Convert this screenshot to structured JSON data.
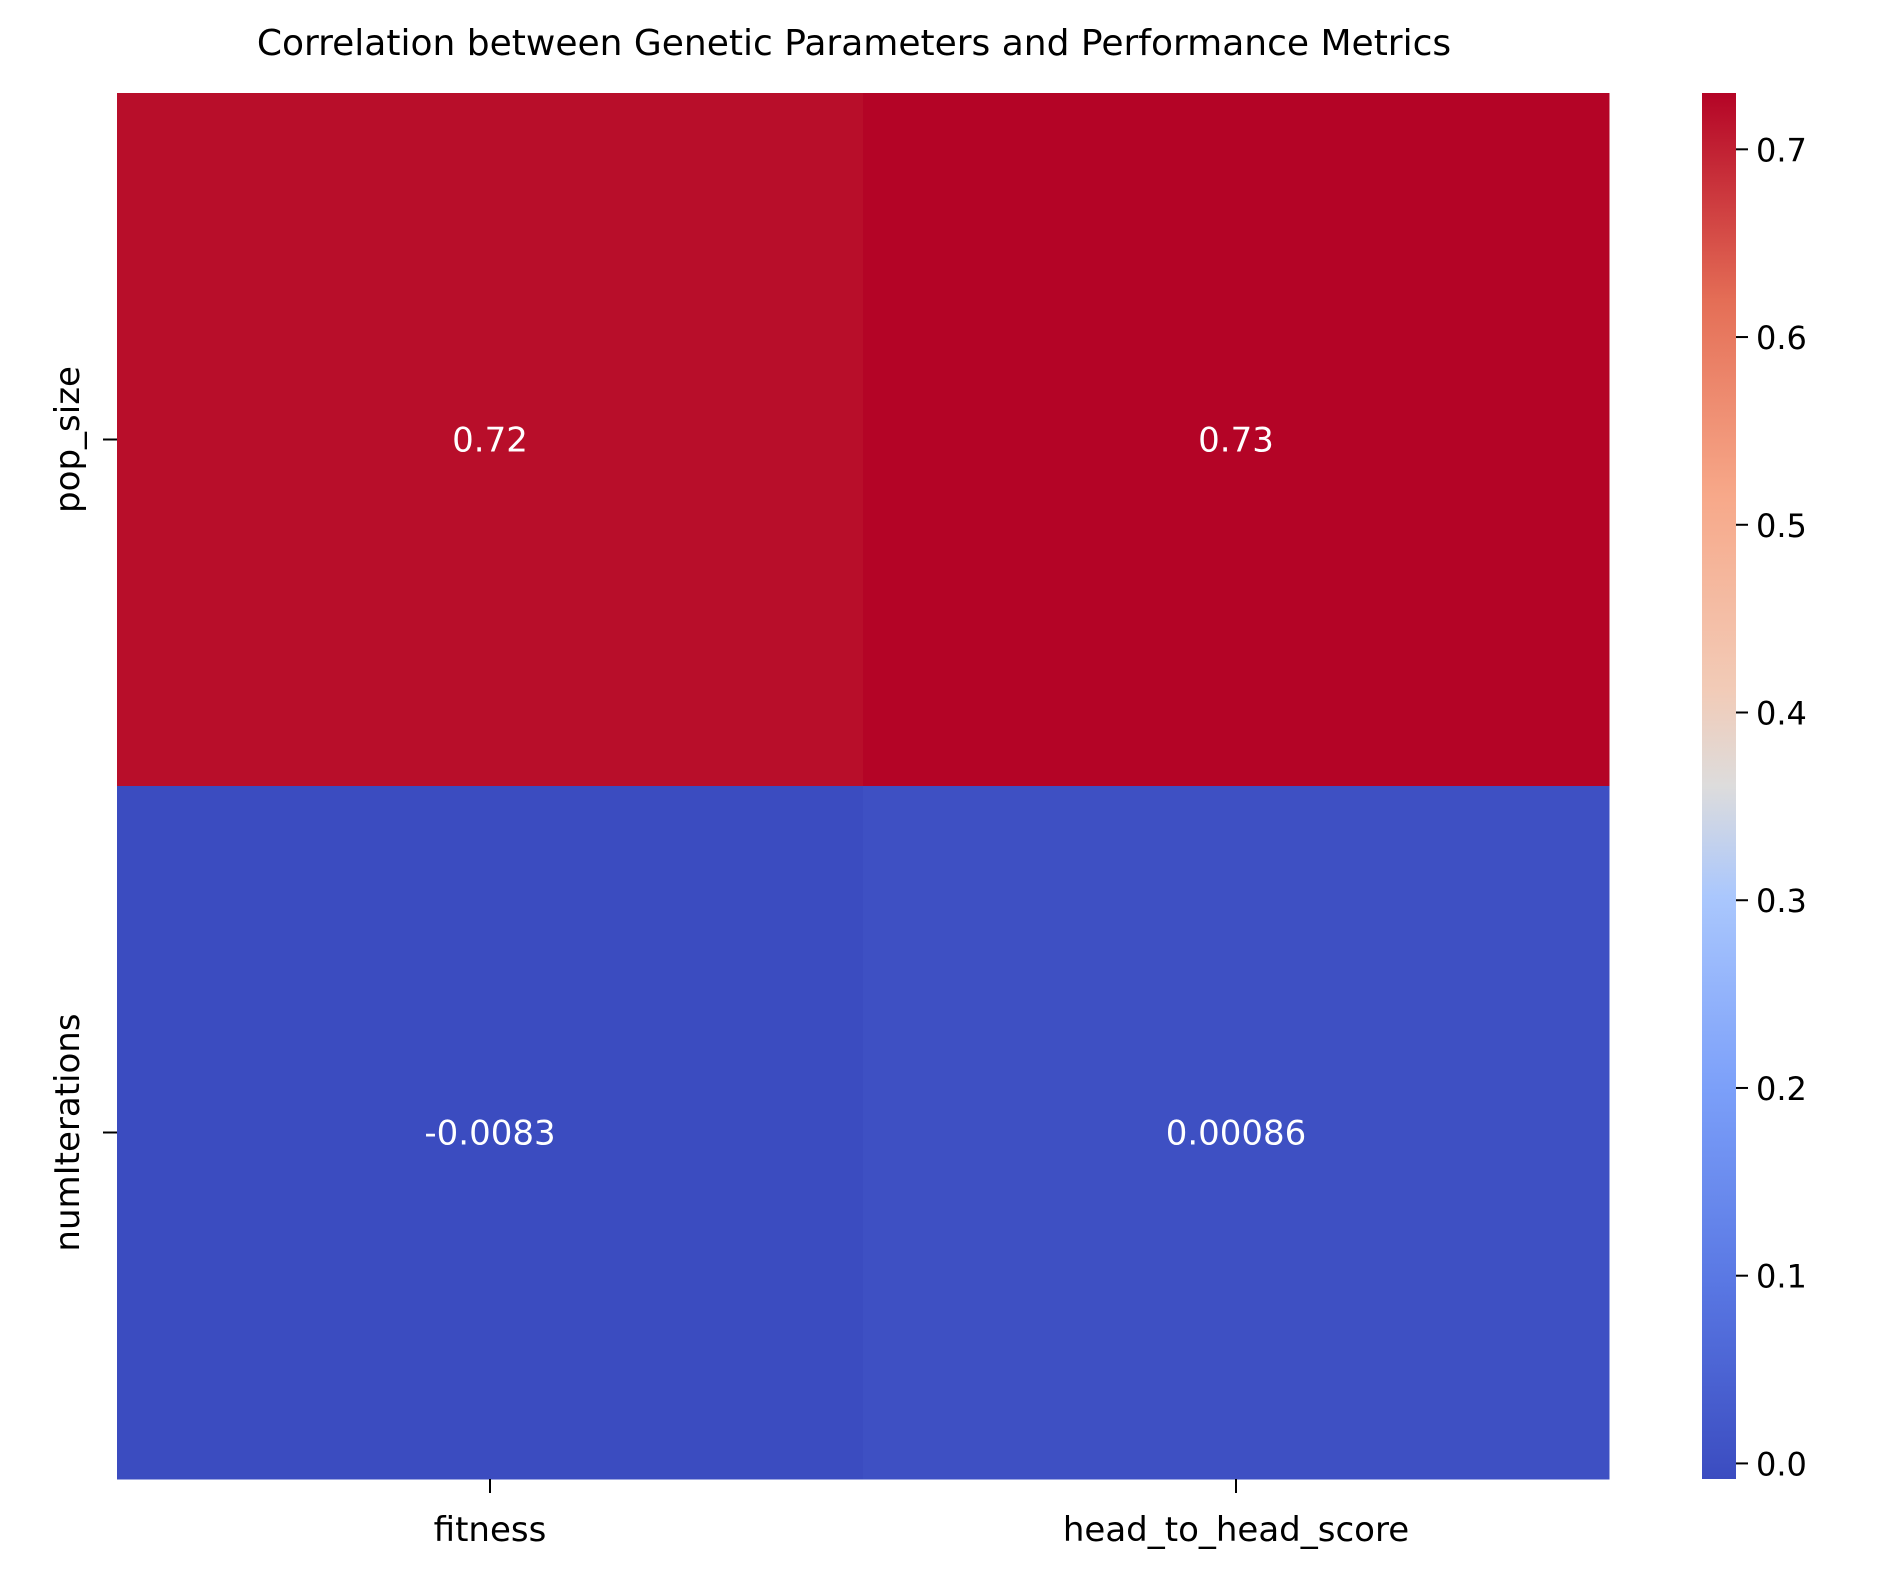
{
  "chart_data": {
    "type": "heatmap",
    "title": "Correlation between Genetic Parameters and Performance Metrics",
    "xlabel": "",
    "ylabel": "",
    "x_categories": [
      "fitness",
      "head_to_head_score"
    ],
    "y_categories": [
      "pop_size",
      "numIterations"
    ],
    "values": [
      [
        0.72,
        0.73
      ],
      [
        -0.0083,
        0.00086
      ]
    ],
    "annotations": [
      [
        "0.72",
        "0.73"
      ],
      [
        "-0.0083",
        "0.00086"
      ]
    ],
    "colormap": "coolwarm",
    "colorbar": {
      "vmin": -0.0083,
      "vmax": 0.73,
      "ticks": [
        0.0,
        0.1,
        0.2,
        0.3,
        0.4,
        0.5,
        0.6,
        0.7
      ],
      "tick_labels": [
        "0.0",
        "0.1",
        "0.2",
        "0.3",
        "0.4",
        "0.5",
        "0.6",
        "0.7"
      ]
    },
    "colors": {
      "low": "#3b4cc0",
      "mid": "#dddddd",
      "high": "#b40426",
      "annotation_text": "#ffffff"
    },
    "grid": false
  }
}
